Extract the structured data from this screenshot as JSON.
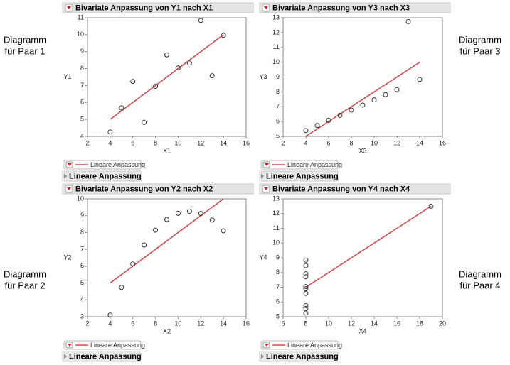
{
  "chart_data": [
    {
      "type": "scatter",
      "title": "Bivariate Anpassung von Y1 nach X1",
      "side_label": [
        "Diagramm",
        "für Paar 1"
      ],
      "x_label": "X1",
      "y_label": "Y1",
      "x": [
        10,
        8,
        13,
        9,
        11,
        14,
        6,
        4,
        12,
        7,
        5
      ],
      "values": [
        8.04,
        6.95,
        7.58,
        8.81,
        8.33,
        9.96,
        7.24,
        4.26,
        10.84,
        4.82,
        5.68
      ],
      "color": "#333333",
      "fit": {
        "name": "Lineare Anpassung",
        "color": "#d04a4f",
        "x": [
          4,
          14
        ],
        "values": [
          5,
          10
        ]
      },
      "outline_label": "Lineare Anpassung",
      "xlim": [
        2,
        16
      ],
      "xticks": [
        2,
        4,
        6,
        8,
        10,
        12,
        14,
        16
      ],
      "ylim": [
        4,
        11
      ],
      "yticks": [
        4,
        5,
        6,
        7,
        8,
        9,
        10,
        11
      ]
    },
    {
      "type": "scatter",
      "title": "Bivariate Anpassung von Y3 nach X3",
      "side_label": [
        "Diagramm",
        "für Paar 3"
      ],
      "x_label": "X3",
      "y_label": "Y3",
      "x": [
        10,
        8,
        13,
        9,
        11,
        14,
        6,
        4,
        12,
        7,
        5
      ],
      "values": [
        7.46,
        6.77,
        12.74,
        7.11,
        7.81,
        8.84,
        6.08,
        5.39,
        8.15,
        6.42,
        5.73
      ],
      "color": "#333333",
      "fit": {
        "name": "Lineare Anpassung",
        "color": "#d04a4f",
        "x": [
          4,
          14
        ],
        "values": [
          5,
          10
        ]
      },
      "outline_label": "Lineare Anpassung",
      "xlim": [
        2,
        16
      ],
      "xticks": [
        2,
        4,
        6,
        8,
        10,
        12,
        14,
        16
      ],
      "ylim": [
        5,
        13
      ],
      "yticks": [
        5,
        6,
        7,
        8,
        9,
        10,
        11,
        12,
        13
      ]
    },
    {
      "type": "scatter",
      "title": "Bivariate Anpassung von Y2 nach X2",
      "side_label": [
        "Diagramm",
        "für Paar 2"
      ],
      "x_label": "X2",
      "y_label": "Y2",
      "x": [
        10,
        8,
        13,
        9,
        11,
        14,
        6,
        4,
        12,
        7,
        5
      ],
      "values": [
        9.14,
        8.14,
        8.74,
        8.77,
        9.26,
        8.1,
        6.13,
        3.1,
        9.13,
        7.26,
        4.74
      ],
      "color": "#333333",
      "fit": {
        "name": "Lineare Anpassung",
        "color": "#d04a4f",
        "x": [
          4,
          14
        ],
        "values": [
          5,
          10
        ]
      },
      "outline_label": "Lineare Anpassung",
      "xlim": [
        2,
        16
      ],
      "xticks": [
        2,
        4,
        6,
        8,
        10,
        12,
        14,
        16
      ],
      "ylim": [
        3,
        10
      ],
      "yticks": [
        3,
        4,
        5,
        6,
        7,
        8,
        9,
        10
      ]
    },
    {
      "type": "scatter",
      "title": "Bivariate Anpassung von Y4 nach X4",
      "side_label": [
        "Diagramm",
        "für Paar 4"
      ],
      "x_label": "X4",
      "y_label": "Y4",
      "x": [
        8,
        8,
        8,
        8,
        8,
        8,
        8,
        19,
        8,
        8,
        8
      ],
      "values": [
        6.58,
        5.76,
        7.71,
        8.84,
        8.47,
        7.04,
        5.25,
        12.5,
        5.56,
        7.91,
        6.89
      ],
      "color": "#333333",
      "fit": {
        "name": "Lineare Anpassung",
        "color": "#d04a4f",
        "x": [
          8,
          19
        ],
        "values": [
          7,
          12.5
        ]
      },
      "outline_label": "Lineare Anpassung",
      "xlim": [
        6,
        20
      ],
      "xticks": [
        6,
        8,
        10,
        12,
        14,
        16,
        18,
        20
      ],
      "ylim": [
        5,
        13
      ],
      "yticks": [
        5,
        6,
        7,
        8,
        9,
        10,
        11,
        12,
        13
      ]
    }
  ]
}
